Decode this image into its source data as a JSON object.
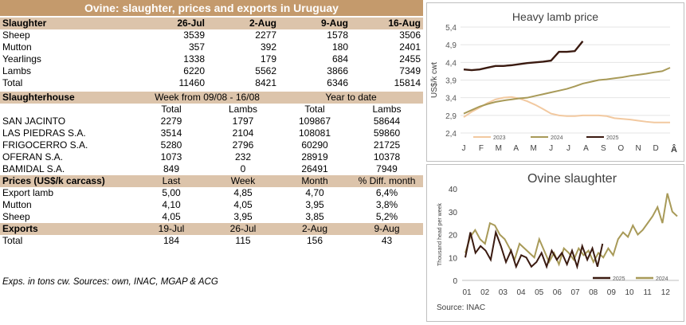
{
  "title": "Ovine: slaughter, prices and exports in Uruguay",
  "slaughter": {
    "label": "Slaughter",
    "dates": [
      "26-Jul",
      "2-Aug",
      "9-Aug",
      "16-Aug"
    ],
    "rows": [
      {
        "name": "Sheep",
        "v": [
          "3539",
          "2277",
          "1578",
          "3506"
        ]
      },
      {
        "name": "Mutton",
        "v": [
          "357",
          "392",
          "180",
          "2401"
        ]
      },
      {
        "name": "Yearlings",
        "v": [
          "1338",
          "179",
          "684",
          "2455"
        ]
      },
      {
        "name": "Lambs",
        "v": [
          "6220",
          "5562",
          "3866",
          "7349"
        ]
      },
      {
        "name": "Total",
        "v": [
          "11460",
          "8421",
          "6346",
          "15814"
        ]
      }
    ]
  },
  "slaughterhouse": {
    "label": "Slaughterhouse",
    "week_label": "Week from  09/08 - 16/08",
    "ytd_label": "Year to date",
    "cols": [
      "Total",
      "Lambs",
      "Total",
      "Lambs"
    ],
    "rows": [
      {
        "name": "SAN JACINTO",
        "v": [
          "2279",
          "1797",
          "109867",
          "58644"
        ]
      },
      {
        "name": "LAS PIEDRAS S.A.",
        "v": [
          "3514",
          "2104",
          "108081",
          "59860"
        ]
      },
      {
        "name": "FRIGOCERRO S.A.",
        "v": [
          "5280",
          "2796",
          "60290",
          "21725"
        ]
      },
      {
        "name": "OFERAN S.A.",
        "v": [
          "1073",
          "232",
          "28919",
          "10378"
        ]
      },
      {
        "name": "BAMIDAL S.A.",
        "v": [
          "849",
          "0",
          "26491",
          "7949"
        ]
      }
    ]
  },
  "prices": {
    "label": "Prices (US$/k carcass)",
    "cols": [
      "Last",
      "Week",
      "Month",
      "% Diff. month"
    ],
    "rows": [
      {
        "name": "Export lamb",
        "v": [
          "5,00",
          "4,85",
          "4,70",
          "6,4%"
        ]
      },
      {
        "name": "Mutton",
        "v": [
          "4,10",
          "4,05",
          "3,95",
          "3,8%"
        ]
      },
      {
        "name": "Sheep",
        "v": [
          "4,05",
          "3,95",
          "3,85",
          "5,2%"
        ]
      }
    ]
  },
  "exports": {
    "label": "Exports",
    "dates": [
      "19-Jul",
      "26-Jul",
      "2-Aug",
      "9-Aug"
    ],
    "rows": [
      {
        "name": "Total",
        "v": [
          "184",
          "115",
          "156",
          "43"
        ]
      }
    ]
  },
  "footnote": "Exps. in tons cw. Sources: own, INAC, MGAP & ACG",
  "colors": {
    "header": "#c49a6c",
    "subheader": "#dcc4ab",
    "s2023": "#f2c9a0",
    "s2024": "#a89a58",
    "s2025": "#3a1a10"
  },
  "chart_data": [
    {
      "type": "line",
      "title": "Heavy lamb price",
      "ylabel": "US$/k cwt",
      "ylim": [
        2.4,
        5.4
      ],
      "yticks": [
        "2,4",
        "2,9",
        "3,4",
        "3,9",
        "4,4",
        "4,9",
        "5,4"
      ],
      "xticks": [
        "J",
        "F",
        "M",
        "A",
        "M",
        "J",
        "J",
        "A",
        "S",
        "O",
        "N",
        "D"
      ],
      "corner_mark": "Â",
      "series": [
        {
          "name": "2023",
          "values": [
            2.85,
            3.0,
            3.12,
            3.25,
            3.35,
            3.4,
            3.42,
            3.38,
            3.3,
            3.2,
            3.08,
            2.95,
            2.9,
            2.88,
            2.88,
            2.9,
            2.9,
            2.9,
            2.88,
            2.82,
            2.8,
            2.78,
            2.75,
            2.72,
            2.7,
            2.7,
            2.7
          ]
        },
        {
          "name": "2024",
          "values": [
            2.95,
            3.05,
            3.15,
            3.22,
            3.28,
            3.32,
            3.35,
            3.38,
            3.4,
            3.45,
            3.5,
            3.55,
            3.6,
            3.65,
            3.72,
            3.8,
            3.85,
            3.9,
            3.92,
            3.95,
            3.98,
            4.02,
            4.05,
            4.08,
            4.12,
            4.15,
            4.25
          ]
        },
        {
          "name": "2025",
          "values": [
            4.2,
            4.18,
            4.2,
            4.25,
            4.3,
            4.3,
            4.32,
            4.35,
            4.38,
            4.4,
            4.42,
            4.45,
            4.7,
            4.7,
            4.72,
            5.0
          ]
        }
      ]
    },
    {
      "type": "line",
      "title": "Ovine slaughter",
      "ylabel": "Thousand head per week",
      "ylim": [
        0,
        40
      ],
      "yticks": [
        "0",
        "10",
        "20",
        "30",
        "40"
      ],
      "xticks": [
        "01",
        "02",
        "03",
        "04",
        "05",
        "06",
        "07",
        "08",
        "09",
        "10",
        "11",
        "12"
      ],
      "source": "Source: INAC",
      "series": [
        {
          "name": "2025",
          "values": [
            10,
            21,
            12,
            15,
            13,
            9,
            21,
            15,
            8,
            13,
            6,
            11,
            10,
            6,
            8,
            12,
            6,
            13,
            9,
            12,
            7,
            13,
            6,
            15,
            9,
            14,
            6,
            16
          ]
        },
        {
          "name": "2024",
          "values": [
            12,
            19,
            22,
            18,
            16,
            25,
            24,
            20,
            18,
            14,
            9,
            16,
            14,
            12,
            10,
            18,
            13,
            8,
            12,
            7,
            14,
            12,
            9,
            14,
            11,
            13,
            8,
            12,
            10,
            14,
            11,
            18,
            21,
            19,
            24,
            20,
            22,
            25,
            28,
            32,
            25,
            38,
            30,
            28
          ]
        }
      ]
    }
  ]
}
